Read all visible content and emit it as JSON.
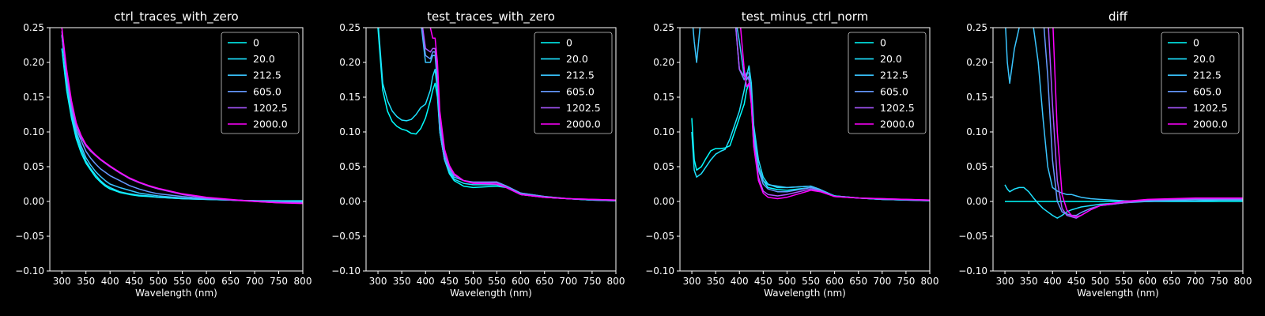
{
  "figure": {
    "background": "#000000",
    "foreground": "#ffffff"
  },
  "series_colors": [
    "#00ffff",
    "#1de2ff",
    "#3ac5ff",
    "#6699ff",
    "#a957ff",
    "#ff00ff"
  ],
  "chart_data": [
    {
      "type": "line",
      "title": "ctrl_traces_with_zero",
      "xlabel": "Wavelength (nm)",
      "ylabel": "",
      "xlim": [
        275,
        800
      ],
      "ylim": [
        -0.1,
        0.25
      ],
      "xticks": [
        300,
        350,
        400,
        450,
        500,
        550,
        600,
        650,
        700,
        750,
        800
      ],
      "xtick_labels": [
        "300",
        "350",
        "400",
        "450",
        "500",
        "550",
        "600",
        "650",
        "700",
        "750",
        "800"
      ],
      "yticks": [
        -0.1,
        -0.05,
        0.0,
        0.05,
        0.1,
        0.15,
        0.2,
        0.25
      ],
      "ytick_labels": [
        "−0.10",
        "−0.05",
        "0.00",
        "0.05",
        "0.10",
        "0.15",
        "0.20",
        "0.25"
      ],
      "legend": "top-right",
      "grid": false,
      "x": [
        300,
        310,
        320,
        330,
        340,
        350,
        360,
        370,
        380,
        390,
        400,
        420,
        440,
        460,
        480,
        500,
        550,
        600,
        650,
        700,
        750,
        800
      ],
      "series": [
        {
          "name": "0",
          "values": [
            0.22,
            0.16,
            0.12,
            0.09,
            0.07,
            0.055,
            0.045,
            0.035,
            0.028,
            0.022,
            0.018,
            0.013,
            0.01,
            0.008,
            0.007,
            0.006,
            0.004,
            0.003,
            0.002,
            0.001,
            0.001,
            0.001
          ]
        },
        {
          "name": "20.0",
          "values": [
            0.24,
            0.17,
            0.125,
            0.095,
            0.075,
            0.058,
            0.047,
            0.038,
            0.03,
            0.024,
            0.02,
            0.014,
            0.011,
            0.009,
            0.008,
            0.006,
            0.004,
            0.003,
            0.002,
            0.001,
            0.001,
            0.0
          ]
        },
        {
          "name": "212.5",
          "values": [
            0.24,
            0.175,
            0.13,
            0.1,
            0.08,
            0.063,
            0.052,
            0.043,
            0.036,
            0.03,
            0.025,
            0.02,
            0.016,
            0.012,
            0.01,
            0.008,
            0.005,
            0.003,
            0.002,
            0.001,
            0.0,
            0.0
          ]
        },
        {
          "name": "605.0",
          "values": [
            0.24,
            0.18,
            0.135,
            0.105,
            0.088,
            0.072,
            0.062,
            0.054,
            0.047,
            0.042,
            0.037,
            0.03,
            0.023,
            0.018,
            0.014,
            0.011,
            0.007,
            0.004,
            0.002,
            0.001,
            0.0,
            -0.001
          ]
        },
        {
          "name": "1202.5",
          "values": [
            0.245,
            0.185,
            0.14,
            0.11,
            0.092,
            0.08,
            0.072,
            0.066,
            0.06,
            0.055,
            0.05,
            0.041,
            0.033,
            0.027,
            0.022,
            0.018,
            0.01,
            0.005,
            0.002,
            0.0,
            -0.002,
            -0.002
          ]
        },
        {
          "name": "2000.0",
          "values": [
            0.25,
            0.19,
            0.145,
            0.113,
            0.095,
            0.082,
            0.074,
            0.067,
            0.061,
            0.056,
            0.051,
            0.042,
            0.034,
            0.028,
            0.023,
            0.019,
            0.011,
            0.006,
            0.003,
            0.0,
            -0.002,
            -0.003
          ]
        }
      ]
    },
    {
      "type": "line",
      "title": "test_traces_with_zero",
      "xlabel": "Wavelength (nm)",
      "ylabel": "",
      "xlim": [
        275,
        800
      ],
      "ylim": [
        -0.1,
        0.25
      ],
      "xticks": [
        300,
        350,
        400,
        450,
        500,
        550,
        600,
        650,
        700,
        750,
        800
      ],
      "xtick_labels": [
        "300",
        "350",
        "400",
        "450",
        "500",
        "550",
        "600",
        "650",
        "700",
        "750",
        "800"
      ],
      "yticks": [
        -0.1,
        -0.05,
        0.0,
        0.05,
        0.1,
        0.15,
        0.2,
        0.25
      ],
      "ytick_labels": [
        "−0.10",
        "−0.05",
        "0.00",
        "0.05",
        "0.10",
        "0.15",
        "0.20",
        "0.25"
      ],
      "legend": "top-right",
      "grid": false,
      "x": [
        300,
        310,
        320,
        330,
        340,
        350,
        360,
        370,
        380,
        390,
        400,
        410,
        415,
        420,
        425,
        430,
        440,
        450,
        460,
        480,
        500,
        550,
        570,
        600,
        650,
        700,
        750,
        800
      ],
      "series": [
        {
          "name": "0",
          "values": [
            0.25,
            0.16,
            0.13,
            0.115,
            0.108,
            0.104,
            0.102,
            0.098,
            0.097,
            0.105,
            0.12,
            0.145,
            0.16,
            0.17,
            0.15,
            0.1,
            0.06,
            0.04,
            0.03,
            0.022,
            0.02,
            0.022,
            0.02,
            0.01,
            0.006,
            0.004,
            0.002,
            0.002
          ]
        },
        {
          "name": "20.0",
          "values": [
            0.26,
            0.17,
            0.145,
            0.13,
            0.122,
            0.117,
            0.116,
            0.118,
            0.125,
            0.135,
            0.14,
            0.16,
            0.18,
            0.19,
            0.16,
            0.1,
            0.06,
            0.042,
            0.032,
            0.026,
            0.024,
            0.024,
            0.02,
            0.01,
            0.006,
            0.004,
            0.002,
            0.001
          ]
        },
        {
          "name": "212.5",
          "values": [
            0.27,
            0.27,
            0.27,
            0.27,
            0.27,
            0.27,
            0.27,
            0.27,
            0.27,
            0.26,
            0.2,
            0.2,
            0.21,
            0.21,
            0.17,
            0.1,
            0.06,
            0.045,
            0.035,
            0.03,
            0.027,
            0.028,
            0.022,
            0.012,
            0.007,
            0.004,
            0.002,
            0.001
          ]
        },
        {
          "name": "605.0",
          "values": [
            0.27,
            0.27,
            0.27,
            0.27,
            0.27,
            0.27,
            0.27,
            0.27,
            0.27,
            0.265,
            0.21,
            0.205,
            0.215,
            0.215,
            0.18,
            0.11,
            0.065,
            0.048,
            0.038,
            0.03,
            0.028,
            0.028,
            0.022,
            0.012,
            0.007,
            0.004,
            0.002,
            0.001
          ]
        },
        {
          "name": "1202.5",
          "values": [
            0.27,
            0.27,
            0.27,
            0.27,
            0.27,
            0.27,
            0.27,
            0.27,
            0.27,
            0.27,
            0.22,
            0.215,
            0.22,
            0.22,
            0.19,
            0.12,
            0.07,
            0.05,
            0.038,
            0.03,
            0.027,
            0.027,
            0.02,
            0.01,
            0.006,
            0.004,
            0.003,
            0.002
          ]
        },
        {
          "name": "2000.0",
          "values": [
            0.27,
            0.27,
            0.27,
            0.27,
            0.27,
            0.27,
            0.27,
            0.27,
            0.27,
            0.27,
            0.27,
            0.25,
            0.235,
            0.235,
            0.2,
            0.13,
            0.075,
            0.052,
            0.04,
            0.03,
            0.026,
            0.025,
            0.02,
            0.01,
            0.006,
            0.004,
            0.003,
            0.002
          ]
        }
      ]
    },
    {
      "type": "line",
      "title": "test_minus_ctrl_norm",
      "xlabel": "Wavelength (nm)",
      "ylabel": "",
      "xlim": [
        275,
        800
      ],
      "ylim": [
        -0.1,
        0.25
      ],
      "xticks": [
        300,
        350,
        400,
        450,
        500,
        550,
        600,
        650,
        700,
        750,
        800
      ],
      "xtick_labels": [
        "300",
        "350",
        "400",
        "450",
        "500",
        "550",
        "600",
        "650",
        "700",
        "750",
        "800"
      ],
      "yticks": [
        -0.1,
        -0.05,
        0.0,
        0.05,
        0.1,
        0.15,
        0.2,
        0.25
      ],
      "ytick_labels": [
        "−0.10",
        "−0.05",
        "0.00",
        "0.05",
        "0.10",
        "0.15",
        "0.20",
        "0.25"
      ],
      "legend": "top-right",
      "grid": false,
      "x": [
        300,
        305,
        310,
        320,
        330,
        340,
        350,
        360,
        370,
        380,
        390,
        400,
        410,
        415,
        420,
        425,
        430,
        440,
        450,
        460,
        480,
        500,
        550,
        570,
        600,
        650,
        700,
        750,
        800
      ],
      "series": [
        {
          "name": "0",
          "values": [
            0.12,
            0.06,
            0.045,
            0.05,
            0.062,
            0.073,
            0.076,
            0.076,
            0.077,
            0.08,
            0.1,
            0.12,
            0.14,
            0.16,
            0.17,
            0.15,
            0.1,
            0.05,
            0.03,
            0.02,
            0.017,
            0.016,
            0.02,
            0.016,
            0.008,
            0.005,
            0.003,
            0.002,
            0.002
          ]
        },
        {
          "name": "20.0",
          "values": [
            0.1,
            0.045,
            0.035,
            0.04,
            0.05,
            0.06,
            0.068,
            0.072,
            0.075,
            0.09,
            0.11,
            0.13,
            0.16,
            0.18,
            0.195,
            0.17,
            0.11,
            0.06,
            0.035,
            0.025,
            0.02,
            0.02,
            0.022,
            0.017,
            0.008,
            0.005,
            0.003,
            0.002,
            0.002
          ]
        },
        {
          "name": "212.5",
          "values": [
            0.27,
            0.23,
            0.2,
            0.27,
            0.27,
            0.27,
            0.27,
            0.27,
            0.27,
            0.27,
            0.27,
            0.23,
            0.18,
            0.175,
            0.18,
            0.16,
            0.1,
            0.05,
            0.03,
            0.024,
            0.022,
            0.02,
            0.022,
            0.017,
            0.008,
            0.005,
            0.003,
            0.002,
            0.001
          ]
        },
        {
          "name": "605.0",
          "values": [
            0.27,
            0.27,
            0.27,
            0.27,
            0.27,
            0.27,
            0.27,
            0.27,
            0.27,
            0.27,
            0.27,
            0.19,
            0.175,
            0.185,
            0.185,
            0.15,
            0.09,
            0.045,
            0.025,
            0.018,
            0.014,
            0.014,
            0.02,
            0.016,
            0.007,
            0.005,
            0.003,
            0.002,
            0.001
          ]
        },
        {
          "name": "1202.5",
          "values": [
            0.27,
            0.27,
            0.27,
            0.27,
            0.27,
            0.27,
            0.27,
            0.27,
            0.27,
            0.27,
            0.27,
            0.19,
            0.18,
            0.18,
            0.175,
            0.14,
            0.08,
            0.035,
            0.015,
            0.01,
            0.008,
            0.01,
            0.018,
            0.015,
            0.007,
            0.005,
            0.004,
            0.003,
            0.002
          ]
        },
        {
          "name": "2000.0",
          "values": [
            0.27,
            0.27,
            0.27,
            0.27,
            0.27,
            0.27,
            0.27,
            0.27,
            0.27,
            0.27,
            0.27,
            0.27,
            0.19,
            0.165,
            0.17,
            0.14,
            0.08,
            0.03,
            0.012,
            0.006,
            0.004,
            0.006,
            0.016,
            0.014,
            0.007,
            0.005,
            0.004,
            0.003,
            0.002
          ]
        }
      ]
    },
    {
      "type": "line",
      "title": "diff",
      "xlabel": "Wavelength (nm)",
      "ylabel": "",
      "xlim": [
        275,
        800
      ],
      "ylim": [
        -0.1,
        0.25
      ],
      "xticks": [
        300,
        350,
        400,
        450,
        500,
        550,
        600,
        650,
        700,
        750,
        800
      ],
      "xtick_labels": [
        "300",
        "350",
        "400",
        "450",
        "500",
        "550",
        "600",
        "650",
        "700",
        "750",
        "800"
      ],
      "yticks": [
        -0.1,
        -0.05,
        0.0,
        0.05,
        0.1,
        0.15,
        0.2,
        0.25
      ],
      "ytick_labels": [
        "−0.10",
        "−0.05",
        "0.00",
        "0.05",
        "0.10",
        "0.15",
        "0.20",
        "0.25"
      ],
      "legend": "top-right",
      "grid": false,
      "x": [
        300,
        305,
        310,
        320,
        330,
        340,
        350,
        360,
        370,
        380,
        390,
        400,
        410,
        420,
        430,
        440,
        450,
        460,
        480,
        500,
        550,
        600,
        650,
        700,
        750,
        800
      ],
      "series": [
        {
          "name": "0",
          "values": [
            0.0,
            0.0,
            0.0,
            0.0,
            0.0,
            0.0,
            0.0,
            0.0,
            0.0,
            0.0,
            0.0,
            0.0,
            0.0,
            0.0,
            0.0,
            0.0,
            0.0,
            0.0,
            0.0,
            0.0,
            0.0,
            0.0,
            0.0,
            0.0,
            0.0,
            0.0
          ]
        },
        {
          "name": "20.0",
          "values": [
            0.024,
            0.018,
            0.014,
            0.018,
            0.02,
            0.02,
            0.014,
            0.005,
            -0.003,
            -0.01,
            -0.015,
            -0.02,
            -0.024,
            -0.02,
            -0.015,
            -0.012,
            -0.01,
            -0.008,
            -0.006,
            -0.004,
            -0.002,
            0.0,
            0.001,
            0.001,
            0.002,
            0.002
          ]
        },
        {
          "name": "212.5",
          "values": [
            0.27,
            0.2,
            0.17,
            0.22,
            0.25,
            0.27,
            0.27,
            0.25,
            0.2,
            0.12,
            0.05,
            0.02,
            0.015,
            0.012,
            0.01,
            0.01,
            0.008,
            0.006,
            0.004,
            0.003,
            0.001,
            0.0,
            0.001,
            0.001,
            0.002,
            0.002
          ]
        },
        {
          "name": "605.0",
          "values": [
            0.27,
            0.27,
            0.27,
            0.27,
            0.27,
            0.27,
            0.27,
            0.27,
            0.27,
            0.27,
            0.18,
            0.06,
            0.0,
            -0.015,
            -0.018,
            -0.02,
            -0.02,
            -0.016,
            -0.01,
            -0.006,
            -0.002,
            0.001,
            0.002,
            0.003,
            0.003,
            0.003
          ]
        },
        {
          "name": "1202.5",
          "values": [
            0.27,
            0.27,
            0.27,
            0.27,
            0.27,
            0.27,
            0.27,
            0.27,
            0.27,
            0.27,
            0.27,
            0.14,
            0.03,
            -0.01,
            -0.02,
            -0.022,
            -0.024,
            -0.02,
            -0.012,
            -0.006,
            -0.002,
            0.002,
            0.003,
            0.004,
            0.004,
            0.004
          ]
        },
        {
          "name": "2000.0",
          "values": [
            0.27,
            0.27,
            0.27,
            0.27,
            0.27,
            0.27,
            0.27,
            0.27,
            0.27,
            0.27,
            0.27,
            0.27,
            0.1,
            0.01,
            -0.012,
            -0.02,
            -0.022,
            -0.02,
            -0.012,
            -0.006,
            0.0,
            0.003,
            0.004,
            0.005,
            0.005,
            0.005
          ]
        }
      ]
    }
  ]
}
